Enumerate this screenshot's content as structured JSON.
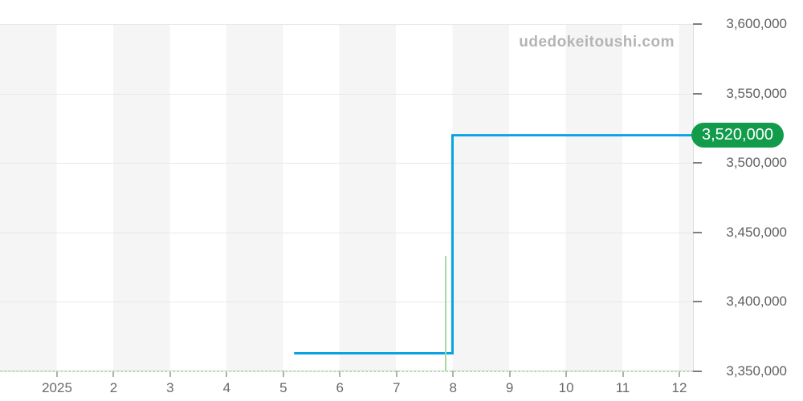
{
  "watermark": "udedokeitoushi.com",
  "badge": {
    "label": "3,520,000",
    "color": "#119b4b"
  },
  "chart_data": {
    "type": "line",
    "title": "",
    "xlabel": "",
    "ylabel": "",
    "grid": "horizontal gridlines with alternating monthly vertical stripes",
    "legend": "none",
    "x_axis": {
      "tick_labels": [
        "2025",
        "2",
        "3",
        "4",
        "5",
        "6",
        "7",
        "8",
        "9",
        "10",
        "11",
        "12"
      ],
      "tick_months": [
        1,
        2,
        3,
        4,
        5,
        6,
        7,
        8,
        9,
        10,
        11,
        12
      ],
      "range_months": [
        0.0,
        12.24
      ]
    },
    "y_axis": {
      "tick_labels": [
        "3,600,000",
        "3,550,000",
        "3,500,000",
        "3,450,000",
        "3,400,000",
        "3,350,000"
      ],
      "tick_values": [
        3600000,
        3550000,
        3500000,
        3450000,
        3400000,
        3350000
      ],
      "range": [
        3350000,
        3600000
      ]
    },
    "series": [
      {
        "name": "price-main",
        "color": "#0aa2e2",
        "style": "solid",
        "width": 3,
        "points": [
          [
            5.19,
            3363000
          ],
          [
            7.99,
            3363000
          ],
          [
            7.99,
            3520000
          ],
          [
            12.24,
            3520000
          ]
        ]
      },
      {
        "name": "price-secondary-baseline",
        "color": "#b2dab2",
        "style": "dashed",
        "width": 2,
        "points": [
          [
            0.0,
            3350000
          ],
          [
            12.24,
            3350000
          ]
        ]
      },
      {
        "name": "price-secondary-spike",
        "color": "#a6d7a6",
        "style": "solid",
        "width": 2,
        "points": [
          [
            7.87,
            3350000
          ],
          [
            7.87,
            3433000
          ]
        ]
      }
    ],
    "current_value": 3520000,
    "current_value_label": "3,520,000"
  }
}
